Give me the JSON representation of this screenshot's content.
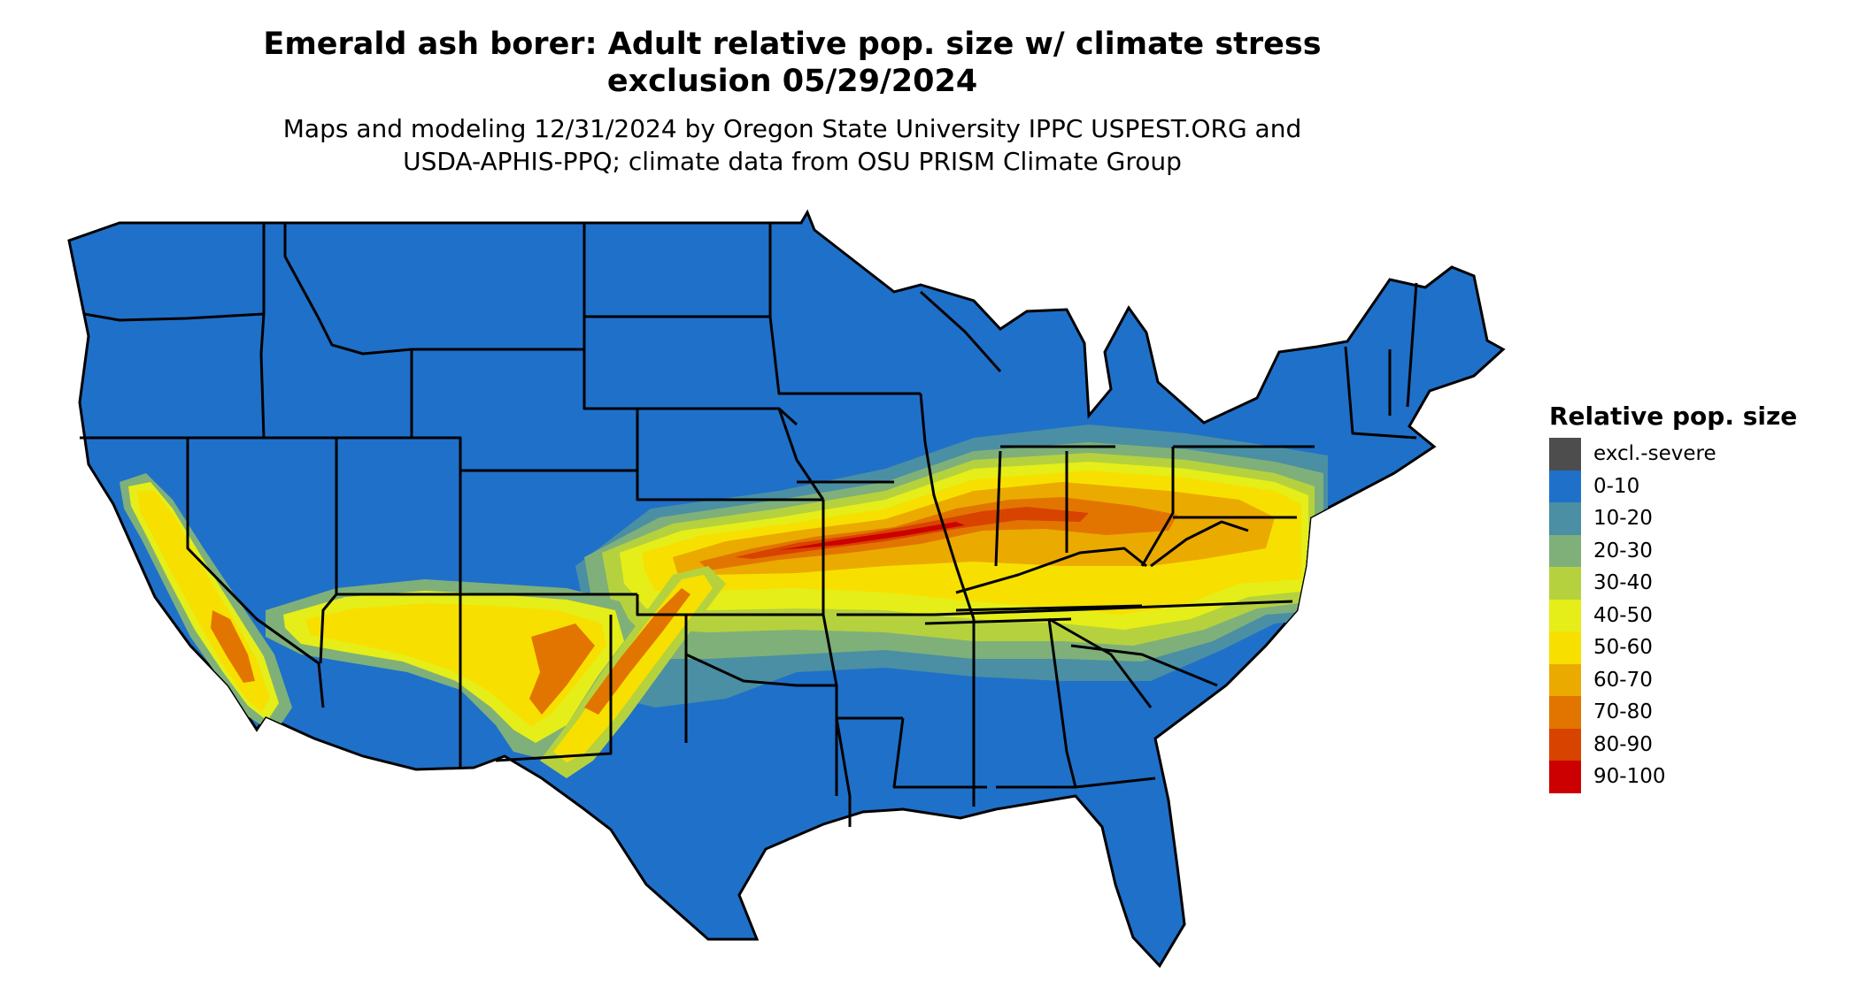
{
  "title": {
    "line1": "Emerald ash borer: Adult relative pop. size w/ climate stress",
    "line2": "exclusion 05/29/2024"
  },
  "subtitle": {
    "line1": "Maps and modeling 12/31/2024 by Oregon State University IPPC USPEST.ORG and",
    "line2": "USDA-APHIS-PPQ; climate data from OSU PRISM Climate Group"
  },
  "legend": {
    "title": "Relative pop. size",
    "items": [
      {
        "label": "excl.-severe",
        "color": "#4d4d4d"
      },
      {
        "label": "0-10",
        "color": "#1f70c9"
      },
      {
        "label": "10-20",
        "color": "#4a8fa3"
      },
      {
        "label": "20-30",
        "color": "#7fb07a"
      },
      {
        "label": "30-40",
        "color": "#b5d23e"
      },
      {
        "label": "40-50",
        "color": "#e5ee19"
      },
      {
        "label": "50-60",
        "color": "#f7e000"
      },
      {
        "label": "60-70",
        "color": "#ebaa00"
      },
      {
        "label": "70-80",
        "color": "#e27500"
      },
      {
        "label": "80-90",
        "color": "#d84300"
      },
      {
        "label": "90-100",
        "color": "#cc0000"
      }
    ]
  },
  "colors": {
    "base": "#1f70c9",
    "border": "#000000"
  }
}
